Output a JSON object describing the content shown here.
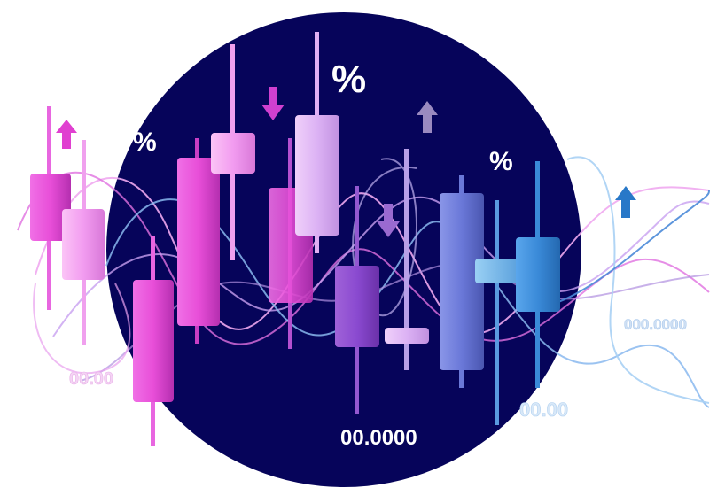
{
  "labels": {
    "percent": "%",
    "left_value": "00.00",
    "bottom_value": "00.0000",
    "right_value": "00.00",
    "far_right_value": "000.0000"
  },
  "icons": {
    "up_arrow": "arrow-up-icon",
    "down_arrow": "arrow-down-icon"
  },
  "colors": {
    "backdrop": "#06045a",
    "magenta": "#e040d0",
    "pink": "#f49cf2",
    "violet": "#8a4ad0",
    "lavender": "#b8a0e8",
    "periwinkle": "#6a78d8",
    "blue": "#3a8ad8",
    "light_blue": "#9cc8ec"
  }
}
